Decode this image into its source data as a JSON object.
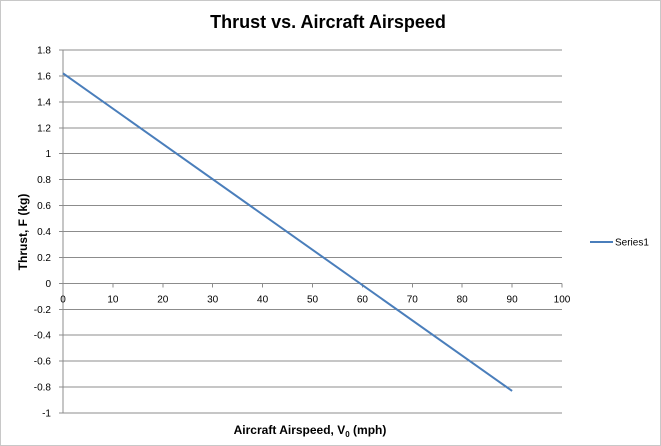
{
  "chart_data": {
    "type": "line",
    "title": "Thrust vs. Aircraft Airspeed",
    "xlabel": {
      "main": "Aircraft  Airspeed, V",
      "sub": "0",
      "tail": " (mph)"
    },
    "ylabel": "Thrust, F (kg)",
    "xlim": [
      0,
      100
    ],
    "ylim": [
      -1,
      1.8
    ],
    "x_ticks": [
      0,
      10,
      20,
      30,
      40,
      50,
      60,
      70,
      80,
      90,
      100
    ],
    "y_ticks": [
      -1,
      -0.8,
      -0.6,
      -0.4,
      -0.2,
      0,
      0.2,
      0.4,
      0.6,
      0.8,
      1,
      1.2,
      1.4,
      1.6,
      1.8
    ],
    "grid": true,
    "legend_position": "right",
    "series": [
      {
        "name": "Series1",
        "color": "#4a7ebb",
        "x": [
          0,
          90
        ],
        "y": [
          1.62,
          -0.83
        ]
      }
    ]
  }
}
